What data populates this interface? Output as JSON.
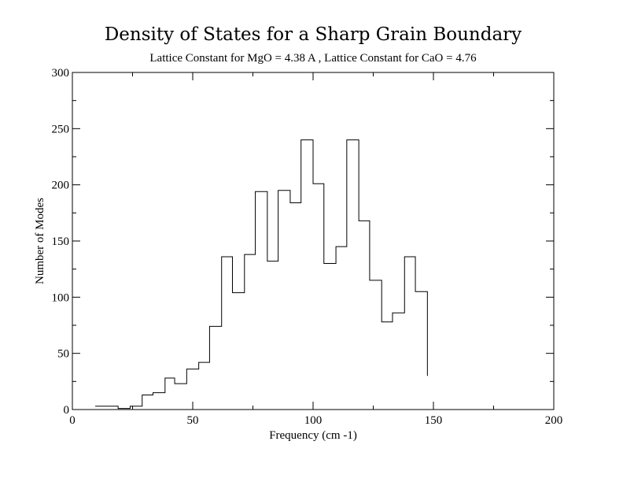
{
  "chart_data": {
    "type": "bar",
    "style": "step-histogram",
    "title": "Density of States for a Sharp Grain Boundary",
    "subtitle": "Lattice Constant for MgO = 4.38 A , Lattice Constant for CaO = 4.76",
    "xlabel": "Frequency (cm -1)",
    "ylabel": "Number of Modes",
    "xlim": [
      0,
      200
    ],
    "ylim": [
      0,
      300
    ],
    "xticks": [
      "0",
      "50",
      "100",
      "150",
      "200"
    ],
    "yticks": [
      "0",
      "50",
      "100",
      "150",
      "200",
      "250",
      "300"
    ],
    "grid": false,
    "bin_edges": [
      9.5,
      19,
      24,
      29,
      33.5,
      38.5,
      42.5,
      47.5,
      52.5,
      57,
      62,
      66.5,
      71.5,
      76,
      81,
      85.5,
      90.5,
      95,
      100,
      104.5,
      109.5,
      114,
      119,
      123.5,
      128.5,
      133,
      138,
      142.5,
      147.5
    ],
    "values": [
      3,
      1,
      3,
      13,
      15,
      28,
      23,
      36,
      42,
      74,
      136,
      104,
      138,
      194,
      132,
      195,
      184,
      240,
      201,
      130,
      145,
      240,
      168,
      115,
      78,
      86,
      136,
      105
    ],
    "end_value": 30,
    "line_color": "#000000"
  }
}
